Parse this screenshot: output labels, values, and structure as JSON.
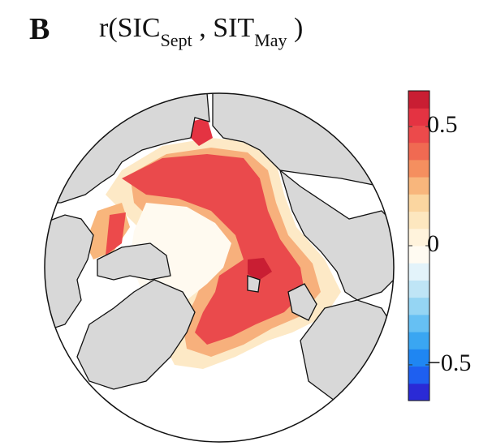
{
  "panel_letter": "B",
  "title": {
    "prefix": "r(SIC",
    "sub1": "Sept",
    "mid": " , SIT",
    "sub2": "May",
    "suffix": " )"
  },
  "colorbar": {
    "range": [
      -0.65,
      0.65
    ],
    "ticks": [
      {
        "value": 0.5,
        "label": "0.5"
      },
      {
        "value": 0,
        "label": "0"
      },
      {
        "value": -0.5,
        "label": "−0.5"
      }
    ],
    "colors": [
      "#2a2ad6",
      "#1e5ff0",
      "#1f86f2",
      "#3aa6f2",
      "#66c0f3",
      "#95d5f3",
      "#bfe5f6",
      "#e3f3fa",
      "#fffbf2",
      "#fff3dc",
      "#fde7bf",
      "#fbd6a0",
      "#f8b67c",
      "#f58f5f",
      "#f06a52",
      "#ec4a4b",
      "#e43342",
      "#c91e33"
    ],
    "tick_color": "#333333"
  },
  "map": {
    "ocean_color": "#ffffff",
    "land_color": "#d8d8d8",
    "outline_color": "#111111"
  }
}
